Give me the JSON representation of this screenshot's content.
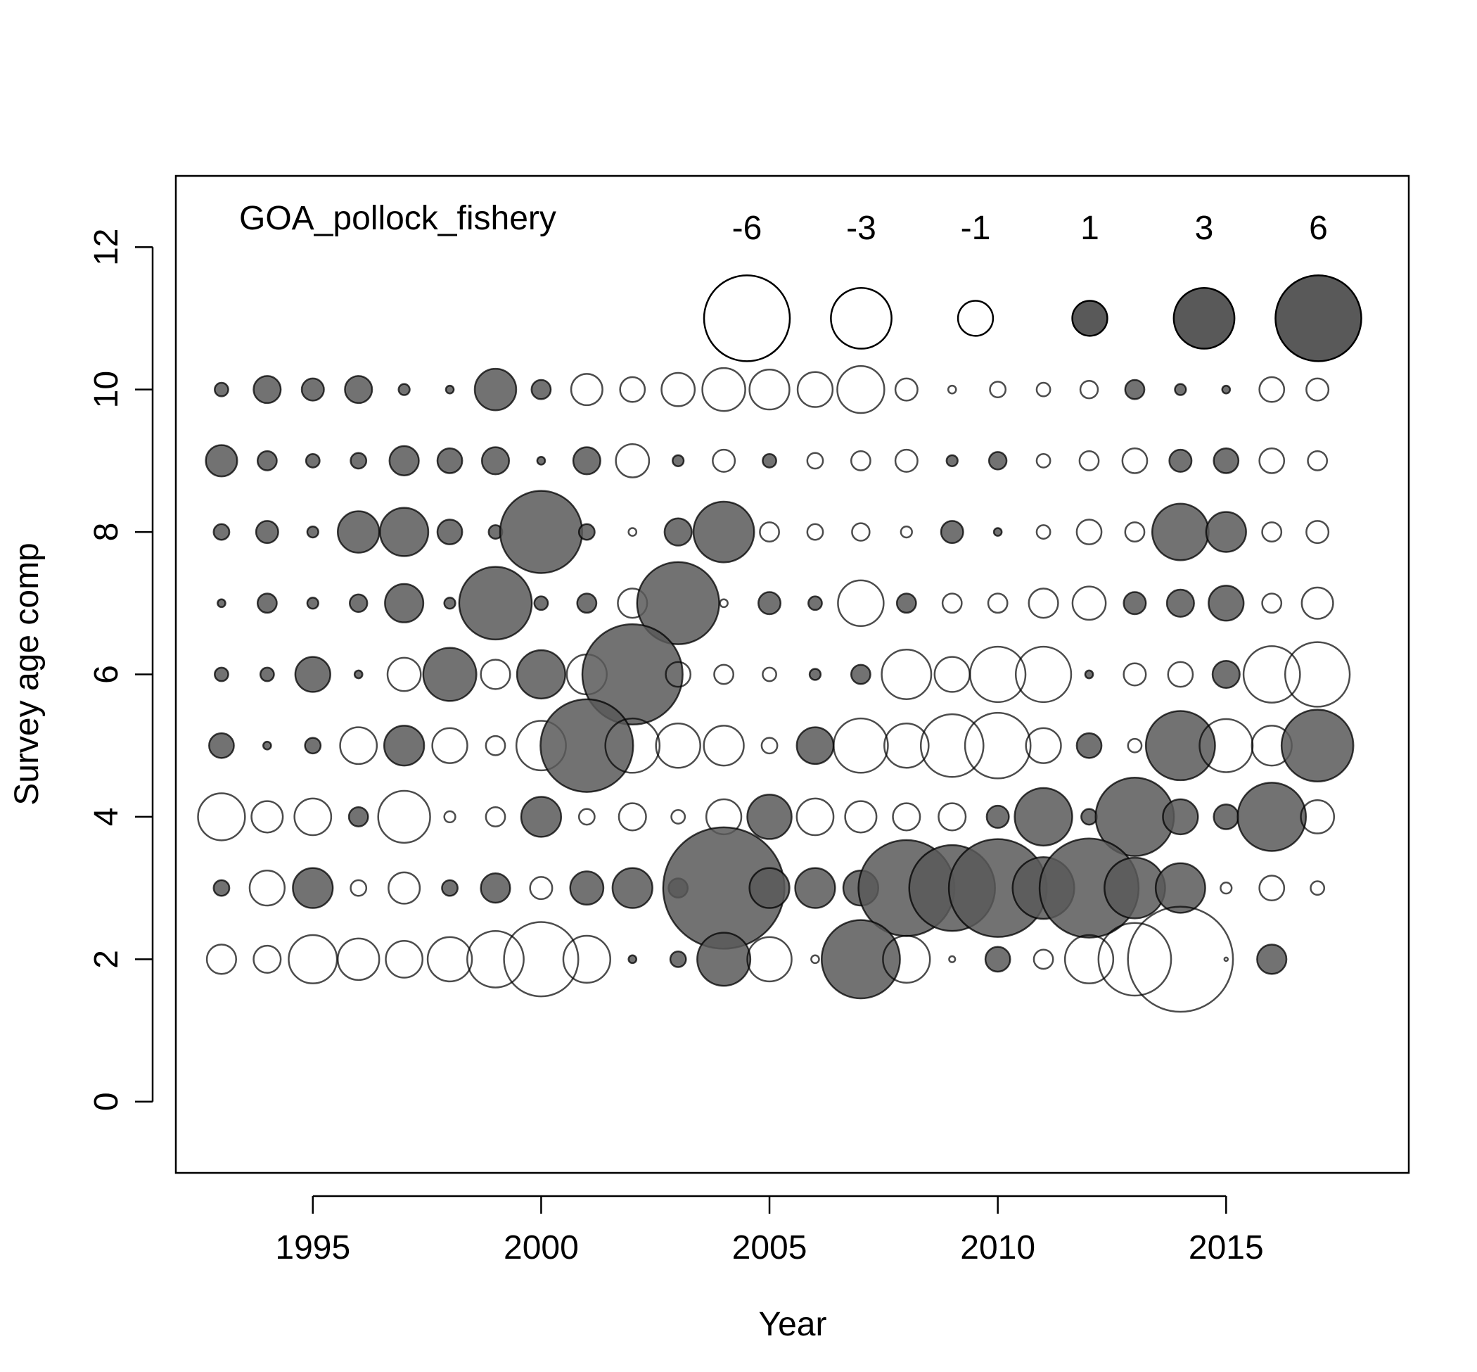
{
  "chart_data": {
    "type": "scatter",
    "subtype": "bubble",
    "title": "",
    "panel_label": "GOA_pollock_fishery",
    "xlabel": "Year",
    "ylabel": "Survey age comp",
    "xlim": [
      1992,
      2019
    ],
    "ylim": [
      -1,
      13
    ],
    "x_ticks": [
      1995,
      2000,
      2005,
      2010,
      2015
    ],
    "y_ticks": [
      0,
      2,
      4,
      6,
      8,
      10,
      12
    ],
    "grid": false,
    "colors": {
      "positive_fill": "#595959",
      "negative_fill": "#ffffff",
      "stroke": "#000000"
    },
    "legend": {
      "placement": "top-right",
      "entries": [
        {
          "label": "-6",
          "value": -6
        },
        {
          "label": "-3",
          "value": -3
        },
        {
          "label": "-1",
          "value": -1
        },
        {
          "label": "1",
          "value": 1
        },
        {
          "label": "3",
          "value": 3
        },
        {
          "label": "6",
          "value": 6
        }
      ]
    },
    "years": [
      1993,
      1994,
      1995,
      1996,
      1997,
      1998,
      1999,
      2000,
      2001,
      2002,
      2003,
      2004,
      2005,
      2006,
      2007,
      2008,
      2009,
      2010,
      2011,
      2012,
      2013,
      2014,
      2015,
      2016,
      2017
    ],
    "residuals": [
      {
        "age": 10,
        "values": [
          0.15,
          0.6,
          0.4,
          0.6,
          0.1,
          0.05,
          1.4,
          0.3,
          -0.8,
          -0.5,
          -0.9,
          -1.5,
          -1.3,
          -1.0,
          -1.8,
          -0.4,
          -0.05,
          -0.2,
          -0.15,
          -0.25,
          0.3,
          0.1,
          0.05,
          -0.5,
          -0.4
        ]
      },
      {
        "age": 9,
        "values": [
          0.8,
          0.3,
          0.15,
          0.2,
          0.7,
          0.5,
          0.6,
          0.05,
          0.6,
          -0.9,
          0.1,
          -0.4,
          0.15,
          -0.2,
          -0.3,
          -0.4,
          0.1,
          0.25,
          -0.15,
          -0.3,
          -0.5,
          0.4,
          0.5,
          -0.5,
          -0.3
        ]
      },
      {
        "age": 8,
        "values": [
          0.2,
          0.4,
          0.1,
          1.4,
          1.9,
          0.5,
          0.15,
          5.5,
          0.2,
          -0.05,
          0.6,
          3.0,
          -0.3,
          -0.2,
          -0.25,
          -0.1,
          0.4,
          0.05,
          -0.15,
          -0.5,
          -0.3,
          2.6,
          1.3,
          -0.3,
          -0.4
        ]
      },
      {
        "age": 7,
        "values": [
          0.05,
          0.3,
          0.1,
          0.25,
          1.2,
          0.1,
          4.3,
          0.15,
          0.3,
          -0.7,
          5.5,
          -0.05,
          0.4,
          0.15,
          -1.7,
          0.3,
          -0.3,
          -0.3,
          -0.7,
          -0.9,
          0.4,
          0.6,
          1.0,
          -0.3,
          -0.8
        ]
      },
      {
        "age": 6,
        "values": [
          0.15,
          0.15,
          1.0,
          0.05,
          -0.9,
          2.3,
          -0.7,
          1.9,
          -1.3,
          8.2,
          -0.5,
          -0.3,
          -0.15,
          0.1,
          0.3,
          -2.0,
          -1.0,
          -2.5,
          -2.5,
          0.05,
          -0.4,
          -0.5,
          0.6,
          -2.6,
          -3.4
        ]
      },
      {
        "age": 5,
        "values": [
          0.5,
          0.05,
          0.2,
          -1.1,
          1.3,
          -1.0,
          -0.3,
          -2.0,
          7.0,
          -2.4,
          -1.6,
          -1.3,
          -0.2,
          1.1,
          -2.4,
          -1.6,
          -3.2,
          -3.5,
          -1.0,
          0.5,
          -0.15,
          3.9,
          -2.3,
          -1.3,
          4.2
        ]
      },
      {
        "age": 4,
        "values": [
          -1.8,
          -0.8,
          -1.1,
          0.3,
          -2.2,
          -0.1,
          -0.3,
          1.3,
          -0.2,
          -0.6,
          -0.15,
          -1.0,
          1.6,
          -1.1,
          -0.8,
          -0.6,
          -0.6,
          0.4,
          2.7,
          0.2,
          5.0,
          1.0,
          0.5,
          3.8,
          -0.9
        ]
      },
      {
        "age": 3,
        "values": [
          0.2,
          -1.0,
          1.3,
          -0.2,
          -0.8,
          0.2,
          0.7,
          -0.4,
          0.9,
          1.3,
          0.3,
          12.0,
          1.3,
          1.3,
          1.0,
          7.5,
          6.0,
          7.8,
          3.1,
          8.0,
          3.0,
          2.0,
          -0.1,
          -0.5,
          -0.15
        ]
      },
      {
        "age": 2,
        "values": [
          -0.7,
          -0.6,
          -1.9,
          -1.4,
          -1.1,
          -1.6,
          -2.6,
          -4.5,
          -1.8,
          0.05,
          0.2,
          2.3,
          -1.6,
          -0.05,
          5.0,
          -1.8,
          -0.03,
          0.5,
          -0.3,
          -1.9,
          -4.3,
          -9.0,
          -0.01,
          0.7,
          0
        ]
      }
    ]
  }
}
